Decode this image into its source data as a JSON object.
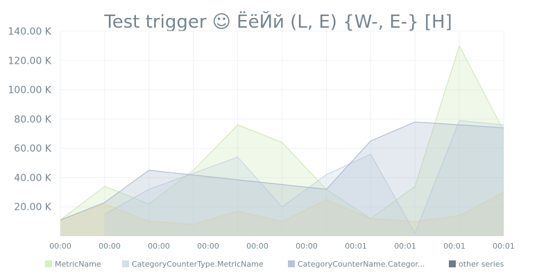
{
  "chart_data": {
    "type": "area",
    "title": "Test trigger ☺ ЁёЙй (L, E) {W-, E-} [H]",
    "xlabel": "",
    "ylabel": "",
    "ylim": [
      0,
      140000
    ],
    "y_ticks": [
      20000,
      40000,
      60000,
      80000,
      100000,
      120000,
      140000
    ],
    "y_tick_labels": [
      "20.00 K",
      "40.00 K",
      "60.00 K",
      "80.00 K",
      "100.00 K",
      "120.00 K",
      "140.00 K"
    ],
    "x_tick_labels": [
      "00:00",
      "00:00",
      "00:00",
      "00:00",
      "00:00",
      "00:00",
      "00:01",
      "00:01",
      "00:01",
      "00:01"
    ],
    "grid": true,
    "legend_position": "bottom",
    "series": [
      {
        "name": "MetricName",
        "color": "#cde8b5",
        "points": [
          [
            0,
            11000
          ],
          [
            1,
            34000
          ],
          [
            2,
            22000
          ],
          [
            3,
            45000
          ],
          [
            4,
            76000
          ],
          [
            5,
            64000
          ],
          [
            6,
            32000
          ],
          [
            7,
            12000
          ],
          [
            8,
            34000
          ],
          [
            9,
            130000
          ],
          [
            10,
            72000
          ]
        ]
      },
      {
        "name": "CategoryCounterType.MetricName",
        "color": "#c5d5e2",
        "points": [
          [
            1,
            15000
          ],
          [
            2,
            32000
          ],
          [
            4,
            54000
          ],
          [
            5,
            20000
          ],
          [
            6,
            42000
          ],
          [
            7,
            56000
          ],
          [
            8,
            2000
          ],
          [
            9,
            79000
          ],
          [
            10,
            76000
          ]
        ]
      },
      {
        "name": "CategoryCounterName.Categor...",
        "color": "#aab8cc",
        "points": [
          [
            0,
            11000
          ],
          [
            1,
            23000
          ],
          [
            2,
            45000
          ],
          [
            6,
            32000
          ],
          [
            7,
            65000
          ],
          [
            8,
            78000
          ],
          [
            10,
            74000
          ]
        ]
      },
      {
        "name": "",
        "color": "#f7e3a1",
        "points": [
          [
            0,
            11000
          ],
          [
            1,
            22000
          ],
          [
            2,
            10000
          ],
          [
            3,
            8000
          ],
          [
            4,
            17000
          ],
          [
            5,
            10000
          ],
          [
            6,
            25000
          ],
          [
            7,
            12000
          ],
          [
            8,
            10000
          ],
          [
            9,
            14000
          ],
          [
            10,
            30000
          ]
        ]
      }
    ],
    "legend": [
      {
        "label": "MetricName",
        "color": "#d7f0c2"
      },
      {
        "label": "CategoryCounterType.MetricName",
        "color": "#d3e0ea"
      },
      {
        "label": "CategoryCounterName.Categor...",
        "color": "#b7c5d6"
      },
      {
        "label": "other series",
        "color": "#6e7c87"
      }
    ]
  }
}
